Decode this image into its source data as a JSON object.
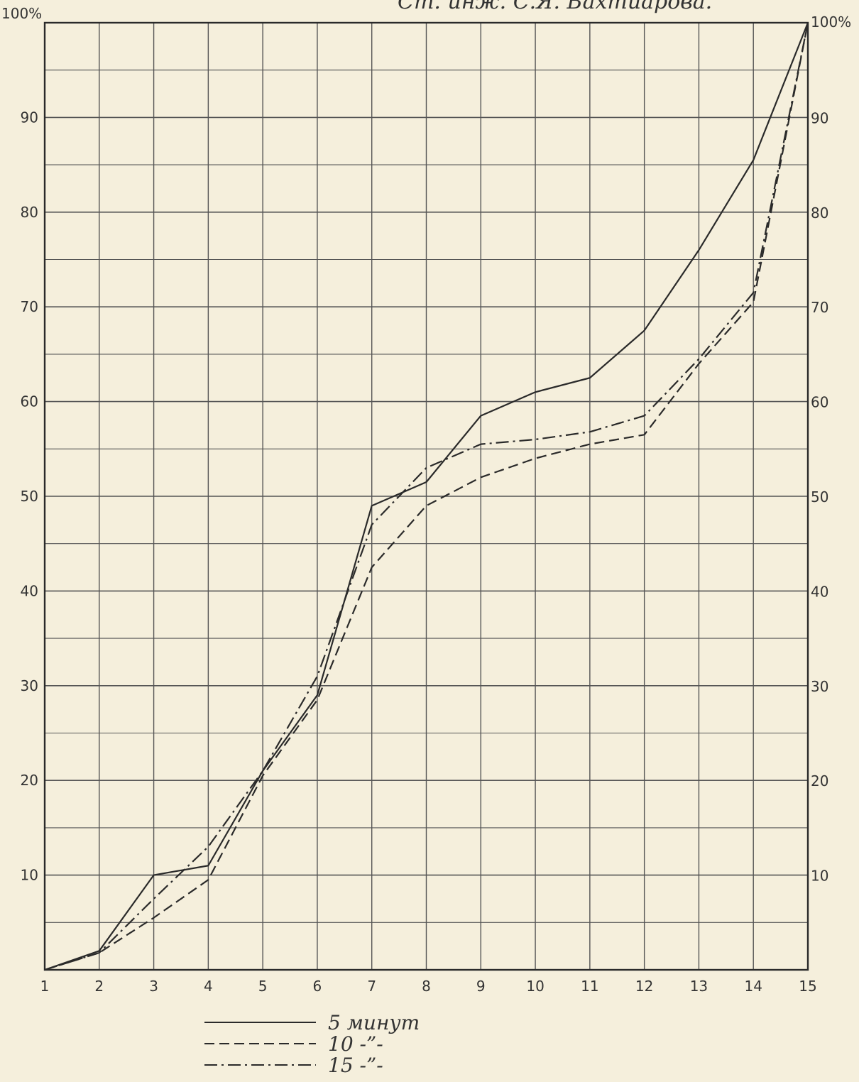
{
  "header": {
    "text": "Ст. инж. С.Я. Бахтиарова."
  },
  "chart_data": {
    "type": "line",
    "x": [
      1,
      2,
      3,
      4,
      5,
      6,
      7,
      8,
      9,
      10,
      11,
      12,
      13,
      14,
      15
    ],
    "xlim": [
      1,
      15
    ],
    "ylim": [
      0,
      100
    ],
    "y_major_step": 10,
    "y_minor_step": 5,
    "grid": true,
    "x_tick_labels": [
      "1",
      "2",
      "3",
      "4",
      "5",
      "6",
      "7",
      "8",
      "9",
      "10",
      "11",
      "12",
      "13",
      "14",
      "15"
    ],
    "y_tick_labels_left": [
      "",
      "10",
      "20",
      "30",
      "40",
      "50",
      "60",
      "70",
      "80",
      "90",
      "100%"
    ],
    "y_tick_labels_right": [
      "",
      "10",
      "20",
      "30",
      "40",
      "50",
      "60",
      "70",
      "80",
      "90",
      "100%"
    ],
    "legend_position": "bottom",
    "series": [
      {
        "name": "5 минут",
        "style": "solid",
        "values": [
          0,
          2,
          10,
          11,
          21,
          29,
          49,
          51.5,
          58.5,
          61,
          62.5,
          67.5,
          76,
          85.5,
          100
        ]
      },
      {
        "name": "10 -”-",
        "style": "dashed",
        "values": [
          0,
          1.8,
          5.5,
          9.5,
          20.5,
          28.5,
          42.5,
          49,
          52,
          54,
          55.5,
          56.5,
          64,
          70.5,
          100
        ]
      },
      {
        "name": "15 -”-",
        "style": "dashdot",
        "values": [
          0,
          1.8,
          7.5,
          13,
          21,
          31,
          47,
          53,
          55.5,
          56,
          56.8,
          58.5,
          64.5,
          71.5,
          100
        ]
      }
    ]
  },
  "colors": {
    "ink": "#2a2a2a",
    "paper": "#f5efdc"
  }
}
